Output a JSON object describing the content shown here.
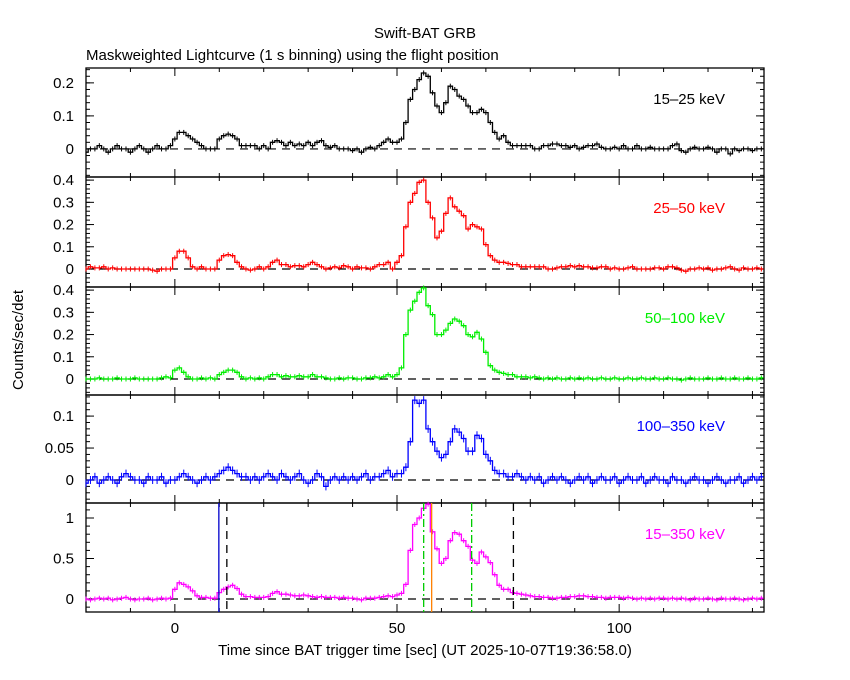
{
  "chart_data": {
    "type": "line",
    "title": "Swift-BAT GRB",
    "subtitle": "Maskweighted Lightcurve (1 s binning) using the flight position",
    "xlabel": "Time since BAT trigger time [sec] (UT 2025-10-07T19:36:58.0)",
    "ylabel": "Counts/sec/det",
    "xlim": [
      -20,
      132.6
    ],
    "xticks": [
      0,
      50,
      100
    ],
    "x_start": -20,
    "x_step": 1,
    "panels": [
      {
        "name": "15-25 keV",
        "label": "15–25 keV",
        "color": "#000000",
        "ylim": [
          -0.085,
          0.245
        ],
        "yticks": [
          0,
          0.1,
          0.2
        ],
        "ytick_labels": [
          "0",
          "0.1",
          "0.2"
        ],
        "minor": 0.02,
        "values": [
          -0.01,
          0,
          0,
          0.01,
          0,
          -0.01,
          0,
          0.01,
          0,
          0,
          -0.01,
          0,
          0.01,
          0,
          -0.01,
          0,
          0.01,
          0,
          0,
          0.01,
          0.03,
          0.05,
          0.05,
          0.04,
          0.03,
          0.02,
          0.01,
          0,
          0,
          0,
          0.03,
          0.04,
          0.045,
          0.04,
          0.03,
          0.01,
          0.01,
          0.01,
          0.01,
          0,
          0.01,
          0,
          0.02,
          0.025,
          0.02,
          0.01,
          0.02,
          0.01,
          0.015,
          0.01,
          0.02,
          0.01,
          0.02,
          0.025,
          0.01,
          0.005,
          0.01,
          0,
          0,
          0,
          -0.005,
          0,
          -0.01,
          0,
          0.005,
          0,
          0.01,
          0.02,
          0.03,
          0.02,
          0.02,
          0.03,
          0.08,
          0.15,
          0.18,
          0.21,
          0.23,
          0.22,
          0.17,
          0.13,
          0.11,
          0.14,
          0.19,
          0.18,
          0.16,
          0.15,
          0.13,
          0.11,
          0.11,
          0.12,
          0.11,
          0.08,
          0.05,
          0.03,
          0.04,
          0.02,
          0.01,
          0.01,
          0.01,
          0.01,
          0.01,
          0,
          0,
          0.01,
          0.01,
          0.015,
          0.015,
          0.01,
          0.01,
          0.005,
          0.01,
          0,
          0.005,
          0.01,
          0.01,
          0.015,
          0.005,
          0,
          0,
          0.005,
          0,
          0.01,
          0,
          0,
          0.01,
          0,
          0,
          0.005,
          0,
          0,
          0,
          0,
          0.01,
          0.015,
          -0.005,
          -0.01,
          0,
          0.005,
          0,
          0,
          0.005,
          0,
          -0.01,
          0,
          0,
          -0.015,
          0,
          -0.005,
          0,
          0,
          -0.005,
          0,
          0
        ]
      },
      {
        "name": "25-50 keV",
        "label": "25–50 keV",
        "color": "#ff0000",
        "ylim": [
          -0.081,
          0.414
        ],
        "yticks": [
          0,
          0.1,
          0.2,
          0.3,
          0.4
        ],
        "ytick_labels": [
          "0",
          "0.1",
          "0.2",
          "0.3",
          "0.4"
        ],
        "minor": 0.02,
        "values": [
          0,
          0.01,
          0.005,
          0.005,
          0.01,
          0,
          0.005,
          0,
          0,
          0,
          0,
          0,
          0,
          0,
          0,
          -0.005,
          -0.01,
          0,
          0,
          0,
          0.05,
          0.08,
          0.08,
          0.05,
          0.01,
          0,
          0.01,
          0,
          0,
          0,
          0.04,
          0.06,
          0.065,
          0.06,
          0.03,
          0.01,
          0,
          -0.005,
          0,
          0.01,
          0,
          0.01,
          0.03,
          0.04,
          0.02,
          0.02,
          0.01,
          0.015,
          0.015,
          0.01,
          0.02,
          0.03,
          0.02,
          0.01,
          0,
          0.005,
          0.01,
          0.005,
          0.015,
          0.01,
          0,
          0.01,
          0.005,
          0.005,
          0,
          0.01,
          0.02,
          0.02,
          0.03,
          0,
          0.03,
          0.06,
          0.19,
          0.3,
          0.34,
          0.39,
          0.4,
          0.3,
          0.23,
          0.14,
          0.17,
          0.25,
          0.32,
          0.28,
          0.26,
          0.24,
          0.18,
          0.2,
          0.19,
          0.18,
          0.11,
          0.06,
          0.04,
          0.03,
          0.03,
          0.025,
          0.02,
          0.02,
          0.01,
          0.01,
          0.01,
          0.01,
          0.01,
          0.01,
          0,
          0,
          0.005,
          0.01,
          0.01,
          0.015,
          0.01,
          0.015,
          0.01,
          0.01,
          0.005,
          0.005,
          0.01,
          0.01,
          0,
          0.005,
          0,
          0,
          0.005,
          0.01,
          0,
          0,
          0,
          0,
          0.005,
          0.005,
          0,
          0.01,
          0.01,
          0.005,
          -0.005,
          -0.01,
          0,
          0,
          0.005,
          0,
          0.005,
          -0.005,
          0,
          0,
          0.005,
          0.01,
          0,
          -0.005,
          0.005,
          0,
          0,
          0.005,
          0
        ]
      },
      {
        "name": "50-100 keV",
        "label": "50–100 keV",
        "color": "#00ee00",
        "ylim": [
          -0.072,
          0.414
        ],
        "yticks": [
          0,
          0.1,
          0.2,
          0.3,
          0.4
        ],
        "ytick_labels": [
          "0",
          "0.1",
          "0.2",
          "0.3",
          "0.4"
        ],
        "minor": 0.02,
        "values": [
          0,
          0,
          0,
          0.005,
          0,
          0,
          0,
          0.005,
          0,
          0,
          0,
          0.005,
          0,
          0,
          0,
          0,
          0,
          0.005,
          0.01,
          0.005,
          0.04,
          0.05,
          0.03,
          0.01,
          0,
          0,
          0.005,
          0,
          0.005,
          0,
          0.02,
          0.03,
          0.04,
          0.04,
          0.03,
          0.01,
          0,
          0.005,
          0,
          0.005,
          0,
          0.01,
          0.02,
          0.02,
          0.01,
          0.015,
          0.01,
          0.01,
          0.015,
          0.01,
          0.01,
          0.02,
          0.01,
          0.01,
          0.005,
          0,
          0,
          0.005,
          0,
          0.005,
          0.005,
          0,
          0,
          0.005,
          0.005,
          0.01,
          0.005,
          0.01,
          0.02,
          0.01,
          0.02,
          0.05,
          0.2,
          0.31,
          0.35,
          0.39,
          0.41,
          0.33,
          0.29,
          0.2,
          0.2,
          0.22,
          0.25,
          0.27,
          0.26,
          0.24,
          0.2,
          0.19,
          0.21,
          0.18,
          0.12,
          0.06,
          0.04,
          0.03,
          0.025,
          0.02,
          0.02,
          0.01,
          0.01,
          0.01,
          0.005,
          0.01,
          0.005,
          0,
          0.005,
          0,
          0.005,
          0,
          0,
          0.005,
          0,
          0.005,
          0,
          0.005,
          0,
          0,
          0.005,
          0,
          0,
          0.005,
          0,
          0,
          0.005,
          0,
          0,
          0.005,
          0,
          0,
          0.005,
          0,
          0,
          0.005,
          0,
          0,
          -0.005,
          0,
          0.005,
          0,
          0,
          0,
          0.005,
          0,
          0,
          0.005,
          0,
          0,
          0.005,
          0,
          0,
          0.005,
          0,
          0,
          0.005
        ]
      },
      {
        "name": "100-350 keV",
        "label": "100–350 keV",
        "color": "#0000ff",
        "ylim": [
          -0.036,
          0.133
        ],
        "yticks": [
          0,
          0.05,
          0.1
        ],
        "ytick_labels": [
          "0",
          "0.05",
          "0.1"
        ],
        "minor": 0.01,
        "values": [
          -0.005,
          0,
          0.005,
          -0.005,
          0,
          0.005,
          0,
          -0.005,
          0.005,
          0.01,
          0.005,
          0,
          0,
          -0.005,
          0.005,
          0,
          0,
          0.005,
          -0.005,
          0,
          0,
          0.005,
          0.01,
          0.005,
          0,
          -0.005,
          0,
          0.005,
          0,
          0.005,
          0.01,
          0.015,
          0.02,
          0.015,
          0.01,
          0.005,
          0.005,
          0,
          0.005,
          0,
          0.005,
          0.01,
          0.005,
          0,
          0.01,
          0.005,
          0,
          0.005,
          0.01,
          0,
          -0.005,
          0,
          0.01,
          0.005,
          -0.01,
          0,
          0.005,
          0,
          0.005,
          0,
          0.005,
          0,
          0.005,
          0.01,
          0,
          0.005,
          0.005,
          0.01,
          0.015,
          0.005,
          0.01,
          0.01,
          0.02,
          0.06,
          0.125,
          0.12,
          0.125,
          0.08,
          0.06,
          0.045,
          0.035,
          0.04,
          0.06,
          0.08,
          0.075,
          0.065,
          0.045,
          0.045,
          0.07,
          0.065,
          0.04,
          0.03,
          0.015,
          0.01,
          0.01,
          0.005,
          0.005,
          0.01,
          0.005,
          0,
          0.005,
          0,
          0.005,
          -0.005,
          0,
          0.005,
          0,
          0.005,
          0,
          -0.005,
          0,
          0.005,
          0,
          0.005,
          -0.005,
          0,
          0.005,
          0,
          0,
          0.005,
          -0.005,
          0,
          0.005,
          0,
          0,
          0.005,
          -0.005,
          0,
          0.005,
          0,
          0,
          -0.005,
          0.005,
          0,
          0,
          -0.005,
          0,
          0.005,
          0,
          0,
          -0.005,
          0,
          0.005,
          0,
          -0.005,
          0,
          0,
          0.005,
          -0.005,
          0,
          0.005,
          0,
          0.005
        ]
      },
      {
        "name": "15-350 keV",
        "label": "15–350 keV",
        "color": "#ff00ff",
        "ylim": [
          -0.16,
          1.185
        ],
        "yticks": [
          0,
          0.5,
          1
        ],
        "ytick_labels": [
          "0",
          "0.5",
          "1"
        ],
        "minor": 0.1,
        "values": [
          0,
          -0.01,
          0,
          0.01,
          0,
          0.01,
          -0.01,
          0,
          0.01,
          0.02,
          0,
          -0.01,
          0,
          0,
          0.01,
          -0.01,
          0,
          0.01,
          0,
          0.01,
          0.12,
          0.2,
          0.18,
          0.15,
          0.1,
          0.04,
          0.02,
          0.02,
          0.01,
          0.01,
          0.08,
          0.12,
          0.15,
          0.17,
          0.13,
          0.06,
          0.03,
          0.03,
          0.02,
          0.02,
          0.02,
          0.03,
          0.07,
          0.09,
          0.06,
          0.06,
          0.05,
          0.04,
          0.04,
          0.05,
          0.04,
          0.03,
          0.02,
          0.03,
          0.02,
          0.02,
          0.02,
          0.01,
          0.02,
          0.01,
          0.01,
          0,
          -0.01,
          0.01,
          0.01,
          0.01,
          0.02,
          0.03,
          0.04,
          0.03,
          0.05,
          0.07,
          0.18,
          0.6,
          0.92,
          1.0,
          1.12,
          1.17,
          0.83,
          0.62,
          0.44,
          0.5,
          0.72,
          0.82,
          0.8,
          0.72,
          0.65,
          0.48,
          0.44,
          0.58,
          0.52,
          0.45,
          0.3,
          0.17,
          0.12,
          0.12,
          0.08,
          0.07,
          0.06,
          0.05,
          0.04,
          0.03,
          0.03,
          0.02,
          0.02,
          0.01,
          0.01,
          0.02,
          0.02,
          0.03,
          0.03,
          0.04,
          0.04,
          0.03,
          0.03,
          0.02,
          0.02,
          0.01,
          0.02,
          0.02,
          0.02,
          0.01,
          0.02,
          0.01,
          0,
          0.01,
          0,
          0.01,
          0,
          0.01,
          0.01,
          0,
          0.01,
          0,
          0.01,
          0,
          -0.01,
          0.01,
          0,
          0,
          0.01,
          0,
          -0.01,
          0.01,
          0,
          0,
          0.01,
          0,
          -0.01,
          0,
          0.01,
          0,
          0.01
        ],
        "markers": [
          {
            "x": 9.9,
            "style": "solid",
            "color": "#0000cc"
          },
          {
            "x": 11.7,
            "style": "dashed",
            "color": "#000000"
          },
          {
            "x": 56.0,
            "style": "dashdot",
            "color": "#00cc00"
          },
          {
            "x": 57.8,
            "style": "solid",
            "color": "#ff8000"
          },
          {
            "x": 66.8,
            "style": "dashdot",
            "color": "#00cc00"
          },
          {
            "x": 76.2,
            "style": "dashed",
            "color": "#000000"
          }
        ]
      }
    ]
  }
}
